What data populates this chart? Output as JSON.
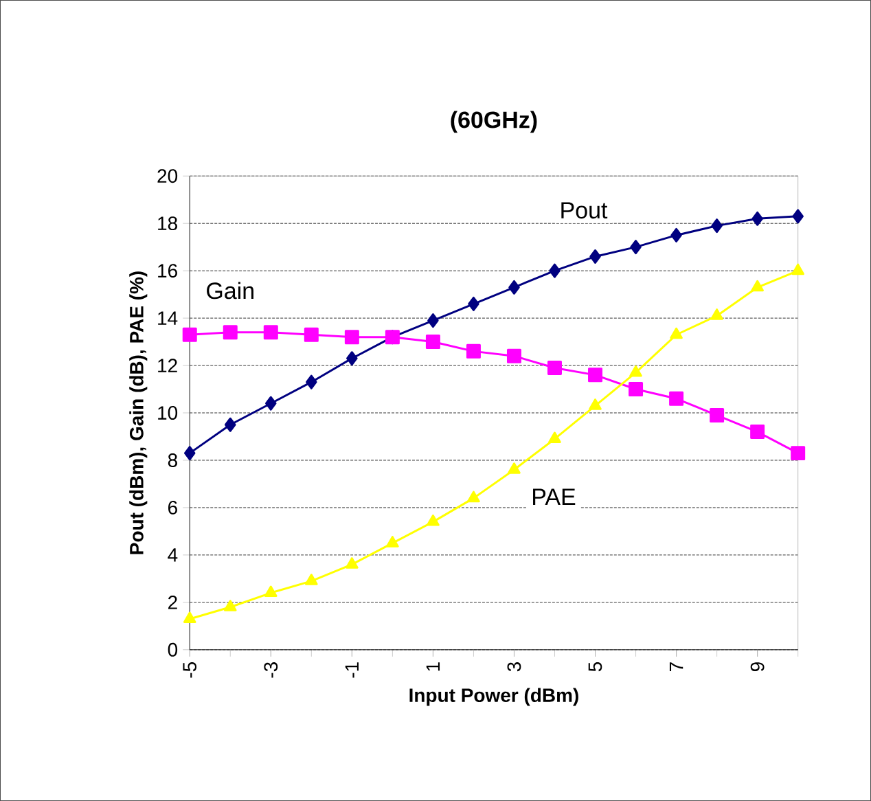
{
  "chart_data": {
    "type": "line",
    "title": "(60GHz)",
    "xlabel": "Input Power (dBm)",
    "ylabel": "Pout (dBm), Gain (dB), PAE (%)",
    "x": [
      -5,
      -4,
      -3,
      -2,
      -1,
      0,
      1,
      2,
      3,
      4,
      5,
      6,
      7,
      8,
      9,
      10
    ],
    "xlim": [
      -5,
      10
    ],
    "xticks": [
      -5,
      -3,
      -1,
      1,
      3,
      5,
      7,
      9
    ],
    "ylim": [
      0,
      20
    ],
    "yticks": [
      0,
      2,
      4,
      6,
      8,
      10,
      12,
      14,
      16,
      18,
      20
    ],
    "grid": "y",
    "series": [
      {
        "name": "Pout",
        "color": "#000080",
        "marker": "diamond",
        "values": [
          8.3,
          9.5,
          10.4,
          11.3,
          12.3,
          13.2,
          13.9,
          14.6,
          15.3,
          16.0,
          16.6,
          17.0,
          17.5,
          17.9,
          18.2,
          18.3
        ]
      },
      {
        "name": "Gain",
        "color": "#ff00ff",
        "marker": "square",
        "values": [
          13.3,
          13.4,
          13.4,
          13.3,
          13.2,
          13.2,
          13.0,
          12.6,
          12.4,
          11.9,
          11.6,
          11.0,
          10.6,
          9.9,
          9.2,
          8.3
        ]
      },
      {
        "name": "PAE",
        "color": "#ffff00",
        "marker": "triangle",
        "values": [
          1.3,
          1.8,
          2.4,
          2.9,
          3.6,
          4.5,
          5.4,
          6.4,
          7.6,
          8.9,
          10.3,
          11.7,
          13.3,
          14.1,
          15.3,
          16.0
        ]
      }
    ]
  }
}
